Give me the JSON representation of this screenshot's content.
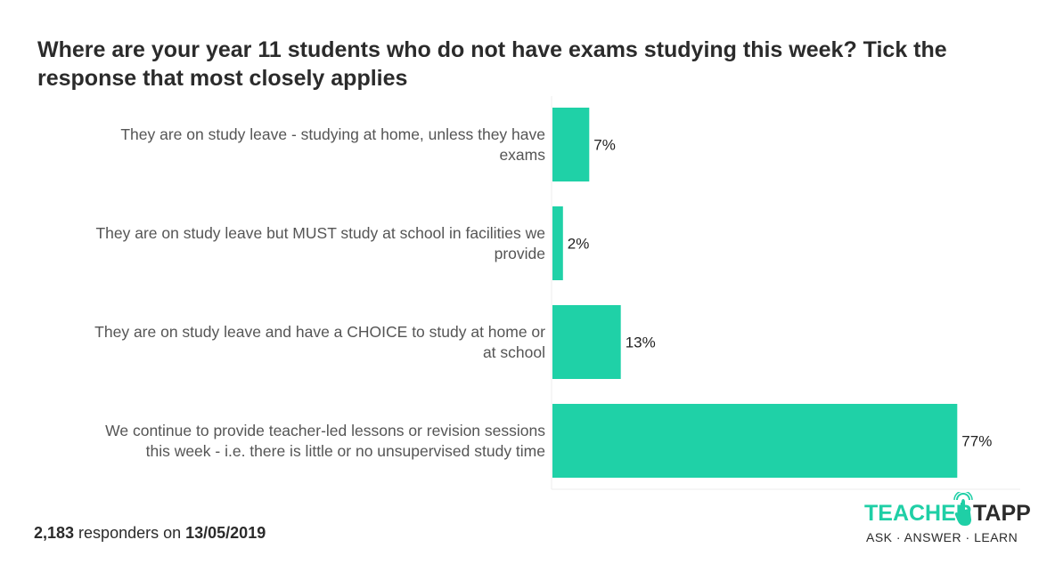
{
  "title": "Where are your year 11 students who do not have exams studying this week? Tick the response that most closely applies",
  "footer": {
    "count": "2,183",
    "middle": " responders on ",
    "date": "13/05/2019"
  },
  "logo": {
    "word1": "TEACHER",
    "word2": "TAPP",
    "tagline": "ASK · ANSWER · LEARN",
    "colors": {
      "accent": "#1fcfa6",
      "dark": "#2b2b2b"
    },
    "icon": "tapping-hand-icon"
  },
  "chart_data": {
    "type": "bar",
    "orientation": "horizontal",
    "categories": [
      [
        "They are on study leave - studying at home, unless they have",
        "exams"
      ],
      [
        "They are on study leave but MUST study at school in facilities we",
        "provide"
      ],
      [
        "They are on  study leave and have a CHOICE to study at home or",
        "at school"
      ],
      [
        "We continue to provide teacher-led lessons or revision sessions",
        "this week - i.e. there is little or no unsupervised study time"
      ]
    ],
    "values": [
      7,
      2,
      13,
      77
    ],
    "value_labels": [
      "7%",
      "2%",
      "13%",
      "77%"
    ],
    "xlim": [
      0,
      100
    ],
    "unit": "%",
    "bar_color": "#1fd1a7",
    "grid": false,
    "legend": "none"
  }
}
